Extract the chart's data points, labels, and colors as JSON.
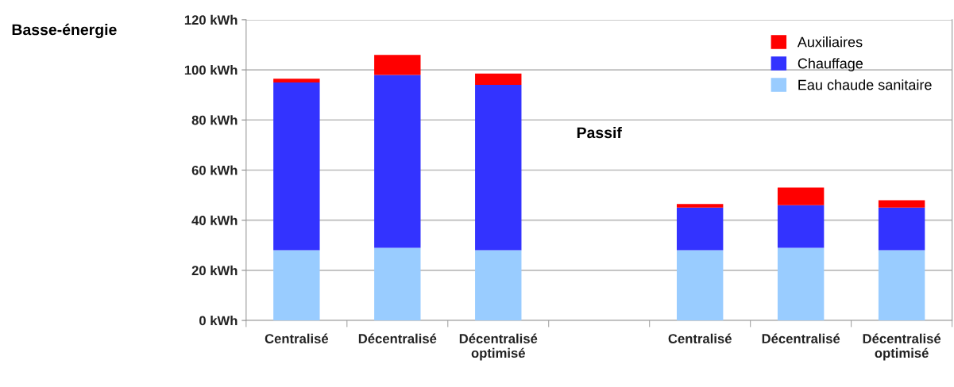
{
  "chart_data": {
    "type": "bar",
    "stacked": true,
    "categories": [
      "Centralisé",
      "Décentralisé",
      "Décentralisé\noptimisé",
      null,
      "Centralisé",
      "Décentralisé",
      "Décentralisé\noptimisé"
    ],
    "series": [
      {
        "name": "Eau chaude sanitaire",
        "color": "#99ccff",
        "values": [
          28,
          29,
          28,
          null,
          28,
          29,
          28
        ]
      },
      {
        "name": "Chauffage",
        "color": "#3333ff",
        "values": [
          67,
          69,
          66,
          null,
          17,
          17,
          17
        ]
      },
      {
        "name": "Auxiliaires",
        "color": "#ff0000",
        "values": [
          1.5,
          8,
          4.5,
          null,
          1.5,
          7,
          3
        ]
      }
    ],
    "ylim": [
      0,
      120
    ],
    "yticks": [
      {
        "value": 0,
        "label": "0 kWh"
      },
      {
        "value": 20,
        "label": "20 kWh"
      },
      {
        "value": 40,
        "label": "40 kWh"
      },
      {
        "value": 60,
        "label": "60 kWh"
      },
      {
        "value": 80,
        "label": "80 kWh"
      },
      {
        "value": 100,
        "label": "100 kWh"
      },
      {
        "value": 120,
        "label": "120 kWh"
      }
    ],
    "grid": "y",
    "legend": "top right",
    "annotations": [
      "Basse-énergie",
      "Passif"
    ]
  }
}
